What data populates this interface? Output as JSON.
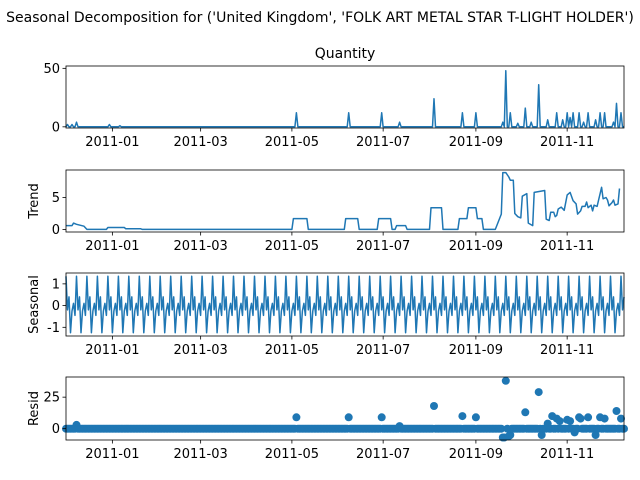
{
  "figure": {
    "suptitle": "Seasonal Decomposition for ('United Kingdom', 'FOLK ART METAL STAR T-LIGHT HOLDER')",
    "line_color": "#1f77b4"
  },
  "chart_data": [
    {
      "type": "line",
      "title": "Quantity",
      "ylabel": "",
      "x_start": "2010-12-01",
      "x_end": "2011-12-09",
      "xticks": [
        "2011-01",
        "2011-03",
        "2011-05",
        "2011-07",
        "2011-09",
        "2011-11"
      ],
      "ylim": [
        -1,
        52
      ],
      "yticks": [
        0,
        50
      ],
      "spikes": [
        {
          "date": "2010-12-02",
          "value": 2
        },
        {
          "date": "2010-12-05",
          "value": 2
        },
        {
          "date": "2010-12-08",
          "value": 4
        },
        {
          "date": "2010-12-30",
          "value": 2
        },
        {
          "date": "2011-01-06",
          "value": 1
        },
        {
          "date": "2011-05-04",
          "value": 12
        },
        {
          "date": "2011-06-08",
          "value": 12
        },
        {
          "date": "2011-06-30",
          "value": 12
        },
        {
          "date": "2011-07-12",
          "value": 4
        },
        {
          "date": "2011-08-04",
          "value": 24
        },
        {
          "date": "2011-08-23",
          "value": 12
        },
        {
          "date": "2011-09-01",
          "value": 12
        },
        {
          "date": "2011-09-19",
          "value": 4
        },
        {
          "date": "2011-09-21",
          "value": 48
        },
        {
          "date": "2011-09-24",
          "value": 12
        },
        {
          "date": "2011-09-29",
          "value": 3
        },
        {
          "date": "2011-10-04",
          "value": 16
        },
        {
          "date": "2011-10-08",
          "value": 4
        },
        {
          "date": "2011-10-13",
          "value": 36
        },
        {
          "date": "2011-10-19",
          "value": 6
        },
        {
          "date": "2011-10-25",
          "value": 12
        },
        {
          "date": "2011-10-29",
          "value": 6
        },
        {
          "date": "2011-11-01",
          "value": 12
        },
        {
          "date": "2011-11-03",
          "value": 8
        },
        {
          "date": "2011-11-05",
          "value": 12
        },
        {
          "date": "2011-11-09",
          "value": 12
        },
        {
          "date": "2011-11-12",
          "value": 4
        },
        {
          "date": "2011-11-15",
          "value": 12
        },
        {
          "date": "2011-11-20",
          "value": 6
        },
        {
          "date": "2011-11-23",
          "value": 12
        },
        {
          "date": "2011-11-26",
          "value": 12
        },
        {
          "date": "2011-12-02",
          "value": 4
        },
        {
          "date": "2011-12-04",
          "value": 20
        },
        {
          "date": "2011-12-07",
          "value": 12
        }
      ]
    },
    {
      "type": "line",
      "title": "",
      "ylabel": "Trend",
      "x_start": "2010-12-01",
      "x_end": "2011-12-09",
      "xticks": [
        "2011-01",
        "2011-03",
        "2011-05",
        "2011-07",
        "2011-09",
        "2011-11"
      ],
      "ylim": [
        -0.4,
        9.3
      ],
      "yticks": [
        0,
        5
      ],
      "points": [
        {
          "date": "2010-12-01",
          "value": 0.6
        },
        {
          "date": "2010-12-05",
          "value": 0.6
        },
        {
          "date": "2010-12-06",
          "value": 1.0
        },
        {
          "date": "2010-12-08",
          "value": 0.8
        },
        {
          "date": "2010-12-13",
          "value": 0.5
        },
        {
          "date": "2010-12-15",
          "value": 0.0
        },
        {
          "date": "2010-12-28",
          "value": 0.0
        },
        {
          "date": "2010-12-29",
          "value": 0.3
        },
        {
          "date": "2011-01-09",
          "value": 0.3
        },
        {
          "date": "2011-01-10",
          "value": 0.1
        },
        {
          "date": "2011-01-20",
          "value": 0.1
        },
        {
          "date": "2011-01-21",
          "value": 0.0
        },
        {
          "date": "2011-05-01",
          "value": 0.0
        },
        {
          "date": "2011-05-02",
          "value": 1.7
        },
        {
          "date": "2011-05-11",
          "value": 1.7
        },
        {
          "date": "2011-05-12",
          "value": 0.0
        },
        {
          "date": "2011-06-05",
          "value": 0.0
        },
        {
          "date": "2011-06-06",
          "value": 1.7
        },
        {
          "date": "2011-06-14",
          "value": 1.7
        },
        {
          "date": "2011-06-15",
          "value": 0.0
        },
        {
          "date": "2011-06-27",
          "value": 0.0
        },
        {
          "date": "2011-06-28",
          "value": 1.7
        },
        {
          "date": "2011-07-06",
          "value": 1.7
        },
        {
          "date": "2011-07-07",
          "value": 0.0
        },
        {
          "date": "2011-07-09",
          "value": 0.0
        },
        {
          "date": "2011-07-10",
          "value": 0.6
        },
        {
          "date": "2011-07-16",
          "value": 0.6
        },
        {
          "date": "2011-07-17",
          "value": 0.0
        },
        {
          "date": "2011-08-01",
          "value": 0.0
        },
        {
          "date": "2011-08-02",
          "value": 3.4
        },
        {
          "date": "2011-08-09",
          "value": 3.4
        },
        {
          "date": "2011-08-10",
          "value": 0.0
        },
        {
          "date": "2011-08-20",
          "value": 0.0
        },
        {
          "date": "2011-08-21",
          "value": 1.7
        },
        {
          "date": "2011-08-26",
          "value": 1.7
        },
        {
          "date": "2011-08-27",
          "value": 3.4
        },
        {
          "date": "2011-09-01",
          "value": 3.4
        },
        {
          "date": "2011-09-02",
          "value": 1.7
        },
        {
          "date": "2011-09-05",
          "value": 1.7
        },
        {
          "date": "2011-09-06",
          "value": 0.0
        },
        {
          "date": "2011-09-14",
          "value": 0.0
        },
        {
          "date": "2011-09-15",
          "value": 0.6
        },
        {
          "date": "2011-09-18",
          "value": 2.4
        },
        {
          "date": "2011-09-19",
          "value": 8.9
        },
        {
          "date": "2011-09-21",
          "value": 8.9
        },
        {
          "date": "2011-09-23",
          "value": 8.2
        },
        {
          "date": "2011-09-24",
          "value": 7.7
        },
        {
          "date": "2011-09-26",
          "value": 7.7
        },
        {
          "date": "2011-09-27",
          "value": 2.5
        },
        {
          "date": "2011-09-29",
          "value": 2.0
        },
        {
          "date": "2011-10-01",
          "value": 1.8
        },
        {
          "date": "2011-10-02",
          "value": 5.2
        },
        {
          "date": "2011-10-05",
          "value": 5.6
        },
        {
          "date": "2011-10-06",
          "value": 1.0
        },
        {
          "date": "2011-10-09",
          "value": 0.6
        },
        {
          "date": "2011-10-10",
          "value": 5.8
        },
        {
          "date": "2011-10-17",
          "value": 6.1
        },
        {
          "date": "2011-10-18",
          "value": 1.6
        },
        {
          "date": "2011-10-20",
          "value": 1.4
        },
        {
          "date": "2011-10-21",
          "value": 2.7
        },
        {
          "date": "2011-10-23",
          "value": 2.7
        },
        {
          "date": "2011-10-24",
          "value": 2.0
        },
        {
          "date": "2011-10-25",
          "value": 2.2
        },
        {
          "date": "2011-10-26",
          "value": 3.2
        },
        {
          "date": "2011-10-28",
          "value": 3.5
        },
        {
          "date": "2011-10-30",
          "value": 3.0
        },
        {
          "date": "2011-11-01",
          "value": 5.4
        },
        {
          "date": "2011-11-03",
          "value": 5.8
        },
        {
          "date": "2011-11-05",
          "value": 4.5
        },
        {
          "date": "2011-11-07",
          "value": 4.0
        },
        {
          "date": "2011-11-08",
          "value": 2.4
        },
        {
          "date": "2011-11-10",
          "value": 2.9
        },
        {
          "date": "2011-11-11",
          "value": 3.6
        },
        {
          "date": "2011-11-13",
          "value": 3.6
        },
        {
          "date": "2011-11-14",
          "value": 4.3
        },
        {
          "date": "2011-11-15",
          "value": 3.4
        },
        {
          "date": "2011-11-17",
          "value": 3.8
        },
        {
          "date": "2011-11-18",
          "value": 2.9
        },
        {
          "date": "2011-11-19",
          "value": 3.8
        },
        {
          "date": "2011-11-21",
          "value": 3.6
        },
        {
          "date": "2011-11-22",
          "value": 4.6
        },
        {
          "date": "2011-11-24",
          "value": 6.6
        },
        {
          "date": "2011-11-25",
          "value": 4.8
        },
        {
          "date": "2011-11-27",
          "value": 5.0
        },
        {
          "date": "2011-11-28",
          "value": 4.6
        },
        {
          "date": "2011-11-29",
          "value": 3.7
        },
        {
          "date": "2011-12-01",
          "value": 4.2
        },
        {
          "date": "2011-12-02",
          "value": 4.6
        },
        {
          "date": "2011-12-03",
          "value": 3.8
        },
        {
          "date": "2011-12-05",
          "value": 4.0
        },
        {
          "date": "2011-12-06",
          "value": 6.4
        }
      ]
    },
    {
      "type": "line",
      "title": "",
      "ylabel": "Seasonal",
      "x_start": "2010-12-01",
      "x_end": "2011-12-09",
      "xticks": [
        "2011-01",
        "2011-03",
        "2011-05",
        "2011-07",
        "2011-09",
        "2011-11"
      ],
      "ylim": [
        -1.4,
        1.5
      ],
      "yticks": [
        -1,
        0,
        1
      ],
      "period_days": 7,
      "weekly_pattern": [
        1.35,
        -0.2,
        0.4,
        -1.25,
        -0.25,
        0.1,
        -0.45
      ]
    },
    {
      "type": "scatter",
      "title": "",
      "ylabel": "Resid",
      "x_start": "2010-12-01",
      "x_end": "2011-12-09",
      "xticks": [
        "2011-01",
        "2011-03",
        "2011-05",
        "2011-07",
        "2011-09",
        "2011-11"
      ],
      "ylim": [
        -9,
        41
      ],
      "yticks": [
        0,
        25
      ],
      "baseline_value": 0,
      "highlights": [
        {
          "date": "2010-12-08",
          "value": 3
        },
        {
          "date": "2011-05-04",
          "value": 9
        },
        {
          "date": "2011-06-08",
          "value": 9
        },
        {
          "date": "2011-06-30",
          "value": 9
        },
        {
          "date": "2011-07-12",
          "value": 2
        },
        {
          "date": "2011-08-04",
          "value": 18
        },
        {
          "date": "2011-08-23",
          "value": 10
        },
        {
          "date": "2011-09-01",
          "value": 9
        },
        {
          "date": "2011-09-19",
          "value": -7
        },
        {
          "date": "2011-09-20",
          "value": -7
        },
        {
          "date": "2011-09-21",
          "value": 38
        },
        {
          "date": "2011-09-23",
          "value": -6
        },
        {
          "date": "2011-09-24",
          "value": -5
        },
        {
          "date": "2011-10-04",
          "value": 13
        },
        {
          "date": "2011-10-13",
          "value": 29
        },
        {
          "date": "2011-10-15",
          "value": -5
        },
        {
          "date": "2011-10-19",
          "value": 4
        },
        {
          "date": "2011-10-22",
          "value": 10
        },
        {
          "date": "2011-10-25",
          "value": 8
        },
        {
          "date": "2011-10-27",
          "value": 6
        },
        {
          "date": "2011-11-01",
          "value": 7
        },
        {
          "date": "2011-11-03",
          "value": 6
        },
        {
          "date": "2011-11-06",
          "value": -3
        },
        {
          "date": "2011-11-09",
          "value": 9
        },
        {
          "date": "2011-11-10",
          "value": 8
        },
        {
          "date": "2011-11-15",
          "value": 9
        },
        {
          "date": "2011-11-20",
          "value": -5
        },
        {
          "date": "2011-11-23",
          "value": 9
        },
        {
          "date": "2011-11-26",
          "value": 8
        },
        {
          "date": "2011-12-04",
          "value": 14
        },
        {
          "date": "2011-12-07",
          "value": 8
        }
      ]
    }
  ]
}
